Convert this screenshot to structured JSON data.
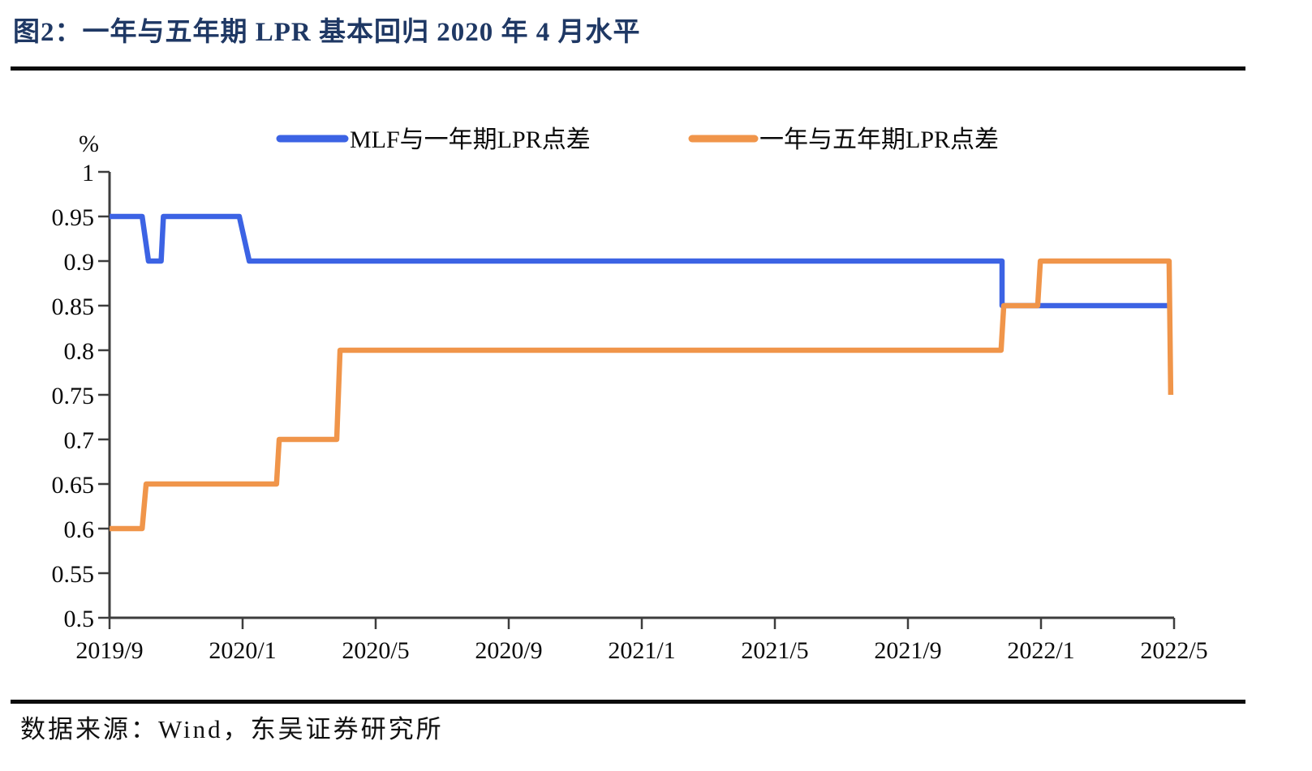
{
  "header": {
    "title": "图2：一年与五年期 LPR 基本回归 2020 年 4 月水平"
  },
  "footer": {
    "source": "数据来源：Wind，东吴证券研究所"
  },
  "colors": {
    "title_navy": "#1F3864",
    "axis": "#3d3d3d",
    "text": "#0a0a0a",
    "series_blue": "#3C63E4",
    "series_orange": "#F0954A"
  },
  "chart_data": {
    "type": "line",
    "title": "图2：一年与五年期 LPR 基本回归 2020 年 4 月水平",
    "unit_label": "%",
    "ylim": [
      0.5,
      1.0
    ],
    "yticks": [
      "1",
      "0.95",
      "0.9",
      "0.85",
      "0.8",
      "0.75",
      "0.7",
      "0.65",
      "0.6",
      "0.55",
      "0.5"
    ],
    "xticks": [
      "2019/9",
      "2020/1",
      "2020/5",
      "2020/9",
      "2021/1",
      "2021/5",
      "2021/9",
      "2022/1",
      "2022/5"
    ],
    "months_per_xtick": 4,
    "x_origin_label": "2019/9",
    "grid": false,
    "legend_position": "top",
    "series": [
      {
        "name": "MLF与一年期LPR点差",
        "color": "#3C63E4",
        "points_note": "x = months after 2019/9, y = spread in %",
        "points": [
          [
            0,
            0.95
          ],
          [
            0.98,
            0.95
          ],
          [
            1.17,
            0.9
          ],
          [
            1.55,
            0.9
          ],
          [
            1.62,
            0.95
          ],
          [
            3.9,
            0.95
          ],
          [
            4.2,
            0.9
          ],
          [
            26.83,
            0.9
          ],
          [
            26.83,
            0.85
          ],
          [
            31.9,
            0.85
          ]
        ]
      },
      {
        "name": "一年与五年期LPR点差",
        "color": "#F0954A",
        "points_note": "x = months after 2019/9, y = spread in %",
        "points": [
          [
            0,
            0.6
          ],
          [
            0.98,
            0.6
          ],
          [
            1.1,
            0.65
          ],
          [
            5.02,
            0.65
          ],
          [
            5.1,
            0.7
          ],
          [
            6.83,
            0.7
          ],
          [
            6.93,
            0.8
          ],
          [
            26.8,
            0.8
          ],
          [
            26.88,
            0.85
          ],
          [
            27.9,
            0.85
          ],
          [
            27.98,
            0.9
          ],
          [
            31.85,
            0.9
          ],
          [
            31.9,
            0.75
          ]
        ]
      }
    ]
  }
}
